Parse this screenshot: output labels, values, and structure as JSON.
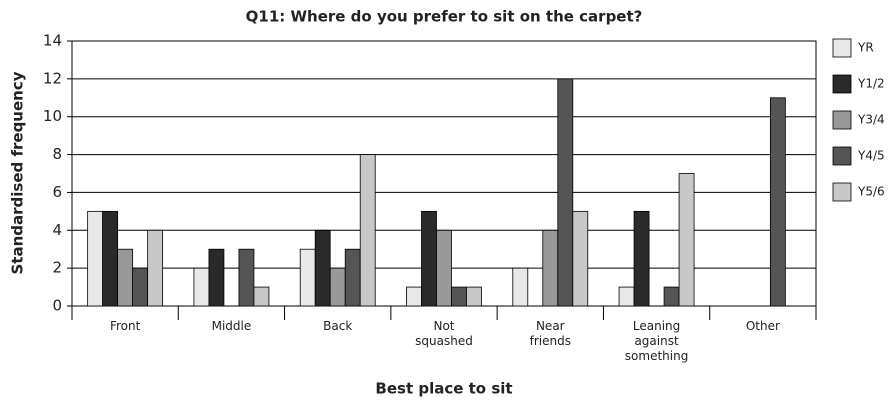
{
  "chart_data": {
    "type": "bar",
    "title": "Q11: Where do you prefer to sit on the carpet?",
    "x_label": "Best place to sit",
    "y_label": "Standardised frequency",
    "categories": [
      [
        "Front"
      ],
      [
        "Middle"
      ],
      [
        "Back"
      ],
      [
        "Not",
        "squashed"
      ],
      [
        "Near",
        "friends"
      ],
      [
        "Leaning",
        "against",
        "something"
      ],
      [
        "Other"
      ]
    ],
    "series": [
      {
        "name": "YR",
        "color": "#e8e8e8",
        "values": [
          5,
          2,
          3,
          1,
          2,
          1,
          0
        ]
      },
      {
        "name": "Y1/2",
        "color": "#2a2a2a",
        "values": [
          5,
          3,
          4,
          5,
          0,
          5,
          0
        ]
      },
      {
        "name": "Y3/4",
        "color": "#999999",
        "values": [
          3,
          0,
          2,
          4,
          4,
          0,
          0
        ]
      },
      {
        "name": "Y4/5",
        "color": "#555555",
        "values": [
          2,
          3,
          3,
          1,
          12,
          1,
          11
        ]
      },
      {
        "name": "Y5/6",
        "color": "#c8c8c8",
        "values": [
          4,
          1,
          8,
          1,
          5,
          7,
          0
        ]
      }
    ],
    "ylim": [
      0,
      14
    ],
    "yticks": [
      0,
      2,
      4,
      6,
      8,
      10,
      12,
      14
    ],
    "grid": true,
    "legend": "right"
  }
}
